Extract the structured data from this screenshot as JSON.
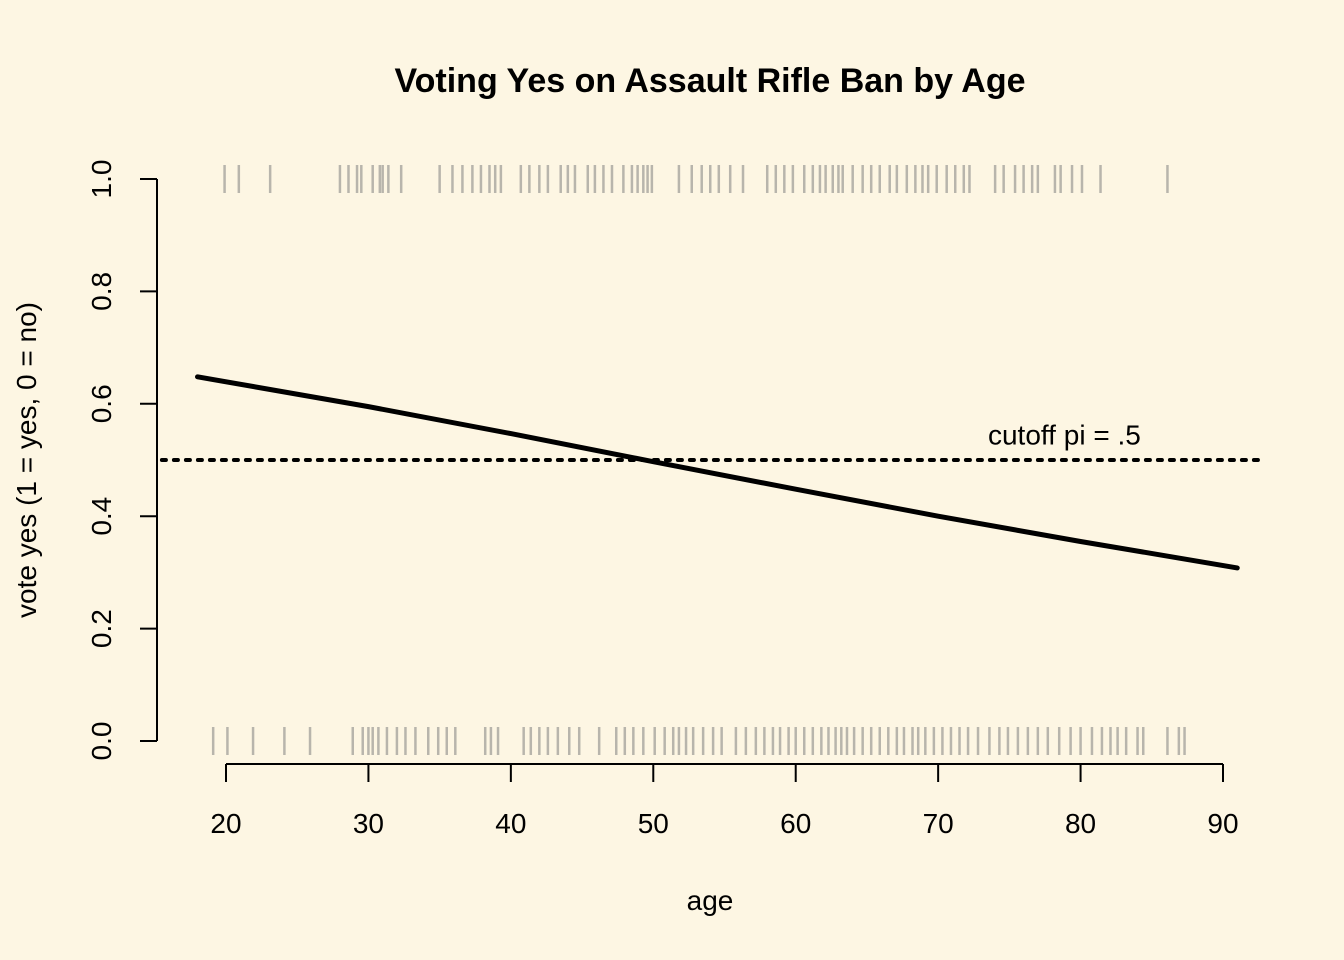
{
  "chart_data": {
    "type": "line",
    "title": "Voting Yes on Assault Rifle Ban by Age",
    "xlabel": "age",
    "ylabel": "vote yes (1 = yes, 0 = no)",
    "xlim": [
      15,
      93
    ],
    "ylim": [
      0,
      1
    ],
    "x_ticks": [
      "20",
      "30",
      "40",
      "50",
      "60",
      "70",
      "80",
      "90"
    ],
    "y_ticks": [
      "0.0",
      "0.2",
      "0.4",
      "0.6",
      "0.8",
      "1.0"
    ],
    "grid": false,
    "colors": {
      "background": "#fdf6e3",
      "line": "#000000",
      "rug": "#7f7f7f"
    },
    "series": [
      {
        "style": "solid",
        "x": [
          18,
          30,
          40,
          50,
          60,
          70,
          80,
          91
        ],
        "y": [
          0.648,
          0.595,
          0.547,
          0.497,
          0.448,
          0.4,
          0.355,
          0.308
        ]
      }
    ],
    "reference_line": {
      "y": 0.5,
      "style": "dotted"
    },
    "annotations": [
      {
        "text": "cutoff pi = .5",
        "x": 73.5,
        "y": 0.545
      }
    ],
    "rug_yes": [
      19.9,
      20.9,
      23.1,
      28.0,
      28.6,
      29.2,
      29.5,
      30.3,
      30.8,
      31.0,
      31.4,
      32.3,
      35.0,
      35.9,
      36.6,
      37.3,
      37.9,
      38.5,
      38.9,
      39.3,
      40.7,
      41.3,
      42.0,
      42.6,
      43.5,
      44.0,
      44.5,
      45.4,
      45.9,
      46.5,
      47.1,
      47.9,
      48.5,
      48.9,
      49.3,
      49.6,
      49.9,
      51.8,
      52.7,
      53.4,
      54.0,
      54.6,
      55.4,
      56.3,
      58.0,
      58.6,
      59.2,
      59.8,
      60.6,
      61.2,
      61.7,
      62.1,
      62.6,
      63.0,
      63.3,
      64.0,
      64.7,
      65.3,
      65.9,
      66.6,
      67.1,
      67.8,
      68.4,
      68.9,
      69.3,
      69.9,
      70.6,
      71.2,
      71.8,
      72.2,
      74.0,
      74.6,
      75.4,
      76.0,
      76.6,
      77.0,
      78.2,
      78.6,
      79.4,
      80.1,
      81.4,
      86.1
    ],
    "rug_no": [
      19.1,
      20.1,
      21.9,
      24.1,
      25.9,
      28.9,
      29.6,
      30.0,
      30.3,
      30.7,
      31.3,
      32.0,
      32.6,
      33.3,
      34.2,
      34.9,
      35.5,
      36.1,
      38.2,
      38.6,
      39.1,
      40.9,
      41.4,
      42.0,
      42.6,
      43.3,
      44.1,
      44.8,
      46.2,
      47.4,
      48.0,
      48.6,
      49.3,
      50.1,
      50.8,
      51.4,
      51.8,
      52.3,
      52.8,
      53.5,
      54.2,
      54.8,
      55.8,
      56.5,
      57.2,
      57.8,
      58.4,
      58.9,
      59.5,
      60.0,
      60.6,
      61.2,
      61.8,
      62.3,
      62.8,
      63.2,
      63.6,
      64.1,
      64.7,
      65.3,
      65.9,
      66.5,
      67.1,
      67.6,
      68.2,
      68.6,
      69.1,
      69.7,
      70.3,
      70.9,
      71.5,
      72.1,
      72.8,
      73.6,
      74.3,
      74.9,
      75.6,
      76.3,
      77.0,
      77.7,
      78.5,
      79.3,
      80.0,
      80.8,
      81.5,
      82.1,
      82.6,
      83.2,
      84.0,
      84.4,
      86.1,
      86.9,
      87.3
    ]
  }
}
